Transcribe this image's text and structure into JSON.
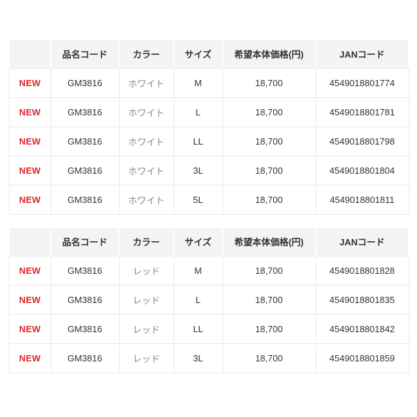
{
  "colors": {
    "new_badge_red": "#e0262d",
    "header_background": "#f4f4f4",
    "cell_border": "#e9e9e9",
    "body_text": "#333333",
    "color_name_text": "#888888"
  },
  "tables": [
    {
      "name": "white-colorway",
      "headers": {
        "badge": "",
        "code": "品名コード",
        "color": "カラー",
        "size": "サイズ",
        "price": "希望本体価格(円)",
        "jan": "JANコード"
      },
      "rows": [
        {
          "badge": "NEW",
          "code": "GM3816",
          "color": "ホワイト",
          "size": "M",
          "price": "18,700",
          "jan": "4549018801774"
        },
        {
          "badge": "NEW",
          "code": "GM3816",
          "color": "ホワイト",
          "size": "L",
          "price": "18,700",
          "jan": "4549018801781"
        },
        {
          "badge": "NEW",
          "code": "GM3816",
          "color": "ホワイト",
          "size": "LL",
          "price": "18,700",
          "jan": "4549018801798"
        },
        {
          "badge": "NEW",
          "code": "GM3816",
          "color": "ホワイト",
          "size": "3L",
          "price": "18,700",
          "jan": "4549018801804"
        },
        {
          "badge": "NEW",
          "code": "GM3816",
          "color": "ホワイト",
          "size": "5L",
          "price": "18,700",
          "jan": "4549018801811"
        }
      ]
    },
    {
      "name": "red-colorway",
      "headers": {
        "badge": "",
        "code": "品名コード",
        "color": "カラー",
        "size": "サイズ",
        "price": "希望本体価格(円)",
        "jan": "JANコード"
      },
      "rows": [
        {
          "badge": "NEW",
          "code": "GM3816",
          "color": "レッド",
          "size": "M",
          "price": "18,700",
          "jan": "4549018801828"
        },
        {
          "badge": "NEW",
          "code": "GM3816",
          "color": "レッド",
          "size": "L",
          "price": "18,700",
          "jan": "4549018801835"
        },
        {
          "badge": "NEW",
          "code": "GM3816",
          "color": "レッド",
          "size": "LL",
          "price": "18,700",
          "jan": "4549018801842"
        },
        {
          "badge": "NEW",
          "code": "GM3816",
          "color": "レッド",
          "size": "3L",
          "price": "18,700",
          "jan": "4549018801859"
        }
      ]
    }
  ]
}
